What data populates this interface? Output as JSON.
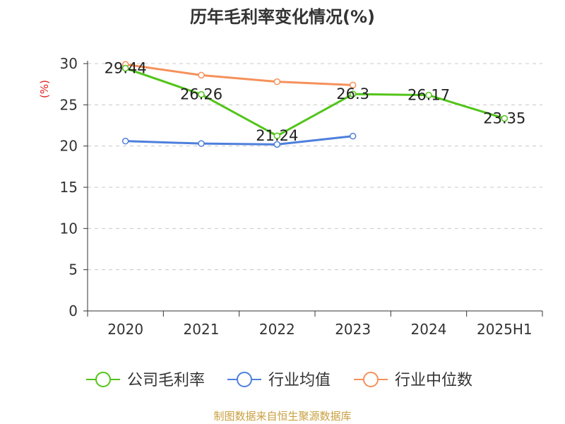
{
  "chart_data": {
    "type": "line",
    "title": "历年毛利率变化情况(%)",
    "ylabel": "(%)",
    "categories": [
      "2020",
      "2021",
      "2022",
      "2023",
      "2024",
      "2025H1"
    ],
    "ylim": [
      0,
      30
    ],
    "yticks": [
      0,
      5,
      10,
      15,
      20,
      25,
      30
    ],
    "grid": true,
    "legend_position": "bottom",
    "series": [
      {
        "name": "公司毛利率",
        "color": "#52c41a",
        "values": [
          29.44,
          26.26,
          21.24,
          26.3,
          26.17,
          23.35
        ],
        "labels": [
          "29.44",
          "26.26",
          "21.24",
          "26.3",
          "26.17",
          "23.35"
        ]
      },
      {
        "name": "行业均值",
        "color": "#4e7fdc",
        "values": [
          20.6,
          20.3,
          20.2,
          21.2,
          null,
          null
        ]
      },
      {
        "name": "行业中位数",
        "color": "#f5915a",
        "values": [
          29.9,
          28.6,
          27.8,
          27.4,
          null,
          null
        ]
      }
    ]
  },
  "footer": {
    "source": "制图数据来自恒生聚源数据库"
  }
}
